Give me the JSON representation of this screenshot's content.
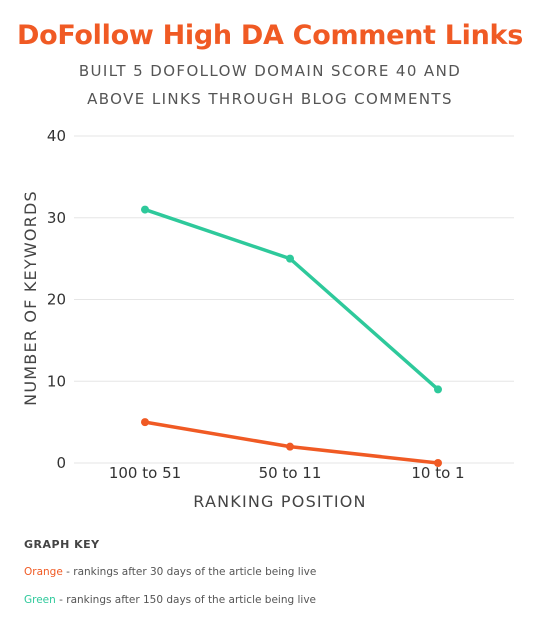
{
  "colors": {
    "orange": "#f05a24",
    "green": "#2ec99b",
    "title": "#f05a24",
    "grid": "#e6e6e6",
    "text": "#333333"
  },
  "chart_data": {
    "type": "line",
    "title": "DoFollow High DA Comment Links",
    "subtitle": [
      "BUILT 5 DOFOLLOW DOMAIN SCORE 40 AND",
      "ABOVE LINKS THROUGH BLOG COMMENTS"
    ],
    "xlabel": "RANKING POSITION",
    "ylabel": "NUMBER OF KEYWORDS",
    "categories": [
      "100 to 51",
      "50 to 11",
      "10 to 1"
    ],
    "yticks": [
      "0",
      "10",
      "20",
      "30",
      "40"
    ],
    "ylim": [
      0,
      40
    ],
    "grid": true,
    "series": [
      {
        "color": "#2ec99b",
        "values": [
          31,
          25,
          9
        ]
      },
      {
        "color": "#f05a24",
        "values": [
          5,
          2,
          0
        ]
      }
    ]
  },
  "key": {
    "title": "GRAPH KEY",
    "items": [
      {
        "color_word": "Orange",
        "text": " - rankings after 30 days of the article being live",
        "color": "#f05a24"
      },
      {
        "color_word": "Green",
        "text": " - rankings after 150 days of the article being live",
        "color": "#2ec99b"
      }
    ]
  }
}
